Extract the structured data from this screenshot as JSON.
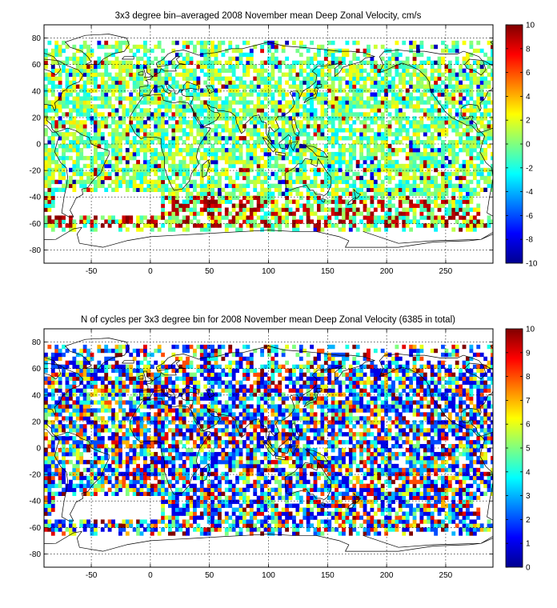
{
  "chart_data": [
    {
      "type": "heatmap",
      "title": "3x3 degree bin–averaged 2008 November mean Deep Zonal Velocity, cm/s",
      "xticks": [
        -50,
        0,
        50,
        100,
        150,
        200,
        250
      ],
      "yticks": [
        80,
        60,
        40,
        20,
        0,
        -20,
        -40,
        -60,
        -80
      ],
      "xlim": [
        -90,
        290
      ],
      "ylim": [
        -90,
        90
      ],
      "colorbar": {
        "min": -10,
        "max": 10,
        "ticks": [
          10,
          8,
          6,
          4,
          2,
          0,
          -2,
          -4,
          -6,
          -8,
          -10
        ]
      },
      "bin_size_deg": 3,
      "grid": true
    },
    {
      "type": "heatmap",
      "title": "N of cycles per 3x3 degree bin for 2008 November mean Deep Zonal Velocity (6385 in total)",
      "xticks": [
        -50,
        0,
        50,
        100,
        150,
        200,
        250
      ],
      "yticks": [
        80,
        60,
        40,
        20,
        0,
        -20,
        -40,
        -60,
        -80
      ],
      "xlim": [
        -90,
        290
      ],
      "ylim": [
        -90,
        90
      ],
      "colorbar": {
        "min": 0,
        "max": 10,
        "ticks": [
          10,
          9,
          8,
          7,
          6,
          5,
          4,
          3,
          2,
          1,
          0
        ]
      },
      "bin_size_deg": 3,
      "grid": true
    }
  ]
}
